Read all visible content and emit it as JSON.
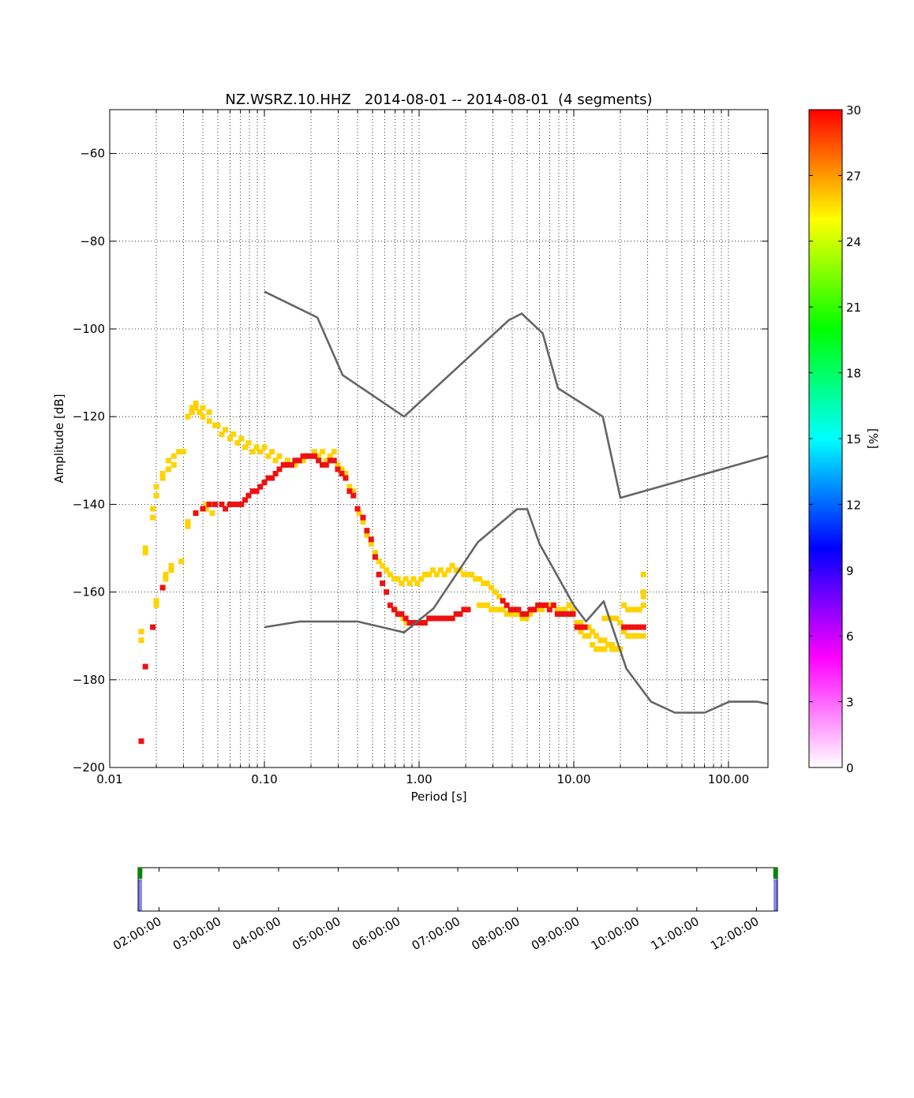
{
  "chart_data": {
    "type": "heatmap",
    "title": "NZ.WSRZ.10.HHZ   2014-08-01 -- 2014-08-01  (4 segments)",
    "xlabel": "Period [s]",
    "ylabel": "Amplitude [dB]",
    "xscale": "log",
    "xlim": [
      0.01,
      180
    ],
    "ylim": [
      -200,
      -50
    ],
    "x_ticks": [
      0.01,
      0.1,
      1,
      10,
      100
    ],
    "x_tick_labels": [
      "0.01",
      "0.10",
      "1.00",
      "10.00",
      "100.00"
    ],
    "y_ticks": [
      -60,
      -80,
      -100,
      -120,
      -140,
      -160,
      -180,
      -200
    ],
    "y_tick_labels": [
      "−60",
      "−80",
      "−100",
      "−120",
      "−140",
      "−160",
      "−180",
      "−200"
    ],
    "grid": true,
    "colorbar": {
      "label": "[%]",
      "range": [
        0,
        30
      ],
      "ticks": [
        0,
        3,
        6,
        9,
        12,
        15,
        18,
        21,
        24,
        27,
        30
      ],
      "tick_labels": [
        "0",
        "3",
        "6",
        "9",
        "12",
        "15",
        "18",
        "21",
        "24",
        "27",
        "30"
      ],
      "colors": [
        "#ffffff",
        "#ff00ff",
        "#0000ff",
        "#00ffff",
        "#00ff00",
        "#ffff00",
        "#ff0000"
      ]
    },
    "noise_models": [
      {
        "label": "NHNM",
        "color": "#646464",
        "points": [
          [
            0.1,
            -91.5
          ],
          [
            0.22,
            -97.4
          ],
          [
            0.32,
            -110.5
          ],
          [
            0.8,
            -120
          ],
          [
            3.8,
            -98
          ],
          [
            4.6,
            -96.5
          ],
          [
            6.3,
            -101
          ],
          [
            7.9,
            -113.5
          ],
          [
            15.4,
            -120
          ],
          [
            20,
            -138.5
          ],
          [
            180,
            -129
          ]
        ]
      },
      {
        "label": "NLNM",
        "color": "#646464",
        "points": [
          [
            0.1,
            -168
          ],
          [
            0.17,
            -166.7
          ],
          [
            0.4,
            -166.7
          ],
          [
            0.8,
            -169.2
          ],
          [
            1.24,
            -163.7
          ],
          [
            2.4,
            -148.6
          ],
          [
            4.3,
            -141.1
          ],
          [
            5.0,
            -141.1
          ],
          [
            6.0,
            -149
          ],
          [
            10,
            -163
          ],
          [
            12,
            -166.7
          ],
          [
            15.6,
            -162.1
          ],
          [
            21.9,
            -177.5
          ],
          [
            31.6,
            -185
          ],
          [
            45,
            -187.5
          ],
          [
            70,
            -187.5
          ],
          [
            101,
            -185
          ],
          [
            154,
            -185
          ],
          [
            180,
            -185.5
          ]
        ]
      }
    ],
    "density_cells": {
      "yellow": [
        [
          0.016,
          -169
        ],
        [
          0.016,
          -171
        ],
        [
          0.017,
          -150
        ],
        [
          0.017,
          -151
        ],
        [
          0.019,
          -141
        ],
        [
          0.019,
          -143
        ],
        [
          0.02,
          -136
        ],
        [
          0.02,
          -138
        ],
        [
          0.02,
          -162
        ],
        [
          0.02,
          -163
        ],
        [
          0.022,
          -133
        ],
        [
          0.022,
          -134
        ],
        [
          0.023,
          -156
        ],
        [
          0.023,
          -157
        ],
        [
          0.024,
          -130
        ],
        [
          0.024,
          -132
        ],
        [
          0.025,
          -154
        ],
        [
          0.025,
          -155
        ],
        [
          0.026,
          -129
        ],
        [
          0.026,
          -131
        ],
        [
          0.028,
          -128
        ],
        [
          0.029,
          -153
        ],
        [
          0.03,
          -128
        ],
        [
          0.032,
          -120
        ],
        [
          0.032,
          -144
        ],
        [
          0.032,
          -145
        ],
        [
          0.034,
          -118
        ],
        [
          0.034,
          -119
        ],
        [
          0.036,
          -117
        ],
        [
          0.036,
          -118
        ],
        [
          0.038,
          -119
        ],
        [
          0.04,
          -118
        ],
        [
          0.04,
          -120
        ],
        [
          0.042,
          -140
        ],
        [
          0.042,
          -141
        ],
        [
          0.044,
          -119
        ],
        [
          0.044,
          -121
        ],
        [
          0.046,
          -140
        ],
        [
          0.046,
          -142
        ],
        [
          0.048,
          -122
        ],
        [
          0.05,
          -122
        ],
        [
          0.053,
          -124
        ],
        [
          0.056,
          -123
        ],
        [
          0.06,
          -125
        ],
        [
          0.063,
          -124
        ],
        [
          0.067,
          -126
        ],
        [
          0.071,
          -125
        ],
        [
          0.075,
          -127
        ],
        [
          0.079,
          -126
        ],
        [
          0.084,
          -128
        ],
        [
          0.089,
          -127
        ],
        [
          0.094,
          -128
        ],
        [
          0.1,
          -127
        ],
        [
          0.106,
          -129
        ],
        [
          0.112,
          -128
        ],
        [
          0.118,
          -130
        ],
        [
          0.125,
          -129
        ],
        [
          0.133,
          -131
        ],
        [
          0.141,
          -130
        ],
        [
          0.15,
          -131
        ],
        [
          0.158,
          -131
        ],
        [
          0.168,
          -130
        ],
        [
          0.178,
          -130
        ],
        [
          0.188,
          -129
        ],
        [
          0.2,
          -129
        ],
        [
          0.211,
          -128
        ],
        [
          0.224,
          -129
        ],
        [
          0.237,
          -128
        ],
        [
          0.251,
          -130
        ],
        [
          0.266,
          -129
        ],
        [
          0.282,
          -128
        ],
        [
          0.298,
          -131
        ],
        [
          0.316,
          -132
        ],
        [
          0.335,
          -133
        ],
        [
          0.355,
          -136
        ],
        [
          0.376,
          -137
        ],
        [
          0.41,
          -142
        ],
        [
          0.434,
          -144
        ],
        [
          0.46,
          -147
        ],
        [
          0.49,
          -149
        ],
        [
          0.52,
          -151
        ],
        [
          0.55,
          -153
        ],
        [
          0.58,
          -154
        ],
        [
          0.615,
          -155
        ],
        [
          0.65,
          -156
        ],
        [
          0.69,
          -157
        ],
        [
          0.73,
          -157
        ],
        [
          0.77,
          -158
        ],
        [
          0.82,
          -157
        ],
        [
          0.87,
          -158
        ],
        [
          0.92,
          -157
        ],
        [
          0.975,
          -158
        ],
        [
          1.03,
          -157
        ],
        [
          1.09,
          -156
        ],
        [
          1.16,
          -156
        ],
        [
          1.23,
          -155
        ],
        [
          1.3,
          -156
        ],
        [
          1.38,
          -155
        ],
        [
          1.46,
          -156
        ],
        [
          1.55,
          -155
        ],
        [
          1.64,
          -154
        ],
        [
          1.74,
          -155
        ],
        [
          1.84,
          -155
        ],
        [
          1.95,
          -156
        ],
        [
          2.07,
          -156
        ],
        [
          2.19,
          -156
        ],
        [
          2.32,
          -157
        ],
        [
          2.46,
          -157
        ],
        [
          2.61,
          -158
        ],
        [
          2.76,
          -158
        ],
        [
          2.93,
          -159
        ],
        [
          3.1,
          -160
        ],
        [
          3.29,
          -161
        ],
        [
          0.7,
          -164
        ],
        [
          0.74,
          -165
        ],
        [
          0.79,
          -166
        ],
        [
          0.83,
          -167
        ],
        [
          2.46,
          -163
        ],
        [
          2.61,
          -163
        ],
        [
          2.76,
          -163
        ],
        [
          2.93,
          -164
        ],
        [
          3.1,
          -164
        ],
        [
          3.29,
          -164
        ],
        [
          3.48,
          -164
        ],
        [
          3.69,
          -165
        ],
        [
          3.91,
          -165
        ],
        [
          4.15,
          -165
        ],
        [
          4.39,
          -165
        ],
        [
          4.66,
          -166
        ],
        [
          4.93,
          -166
        ],
        [
          5.23,
          -165
        ],
        [
          5.54,
          -164
        ],
        [
          5.87,
          -164
        ],
        [
          6.22,
          -164
        ],
        [
          6.59,
          -163
        ],
        [
          6.98,
          -163
        ],
        [
          7.4,
          -163
        ],
        [
          7.84,
          -164
        ],
        [
          8.31,
          -164
        ],
        [
          8.8,
          -164
        ],
        [
          9.33,
          -163
        ],
        [
          9.88,
          -164
        ],
        [
          10.5,
          -167
        ],
        [
          11.1,
          -167
        ],
        [
          11.8,
          -168
        ],
        [
          12.5,
          -168
        ],
        [
          13.2,
          -169
        ],
        [
          14.0,
          -170
        ],
        [
          14.9,
          -171
        ],
        [
          15.8,
          -171
        ],
        [
          16.7,
          -172
        ],
        [
          17.7,
          -172
        ],
        [
          18.8,
          -173
        ],
        [
          19.9,
          -173
        ],
        [
          10.5,
          -168
        ],
        [
          11.1,
          -169
        ],
        [
          11.8,
          -170
        ],
        [
          12.5,
          -170
        ],
        [
          13.2,
          -172
        ],
        [
          14.0,
          -173
        ],
        [
          14.9,
          -173
        ],
        [
          15.8,
          -173
        ],
        [
          16.7,
          -172
        ],
        [
          17.7,
          -173
        ],
        [
          18.8,
          -173
        ],
        [
          15.8,
          -166
        ],
        [
          16.7,
          -166
        ],
        [
          17.7,
          -166
        ],
        [
          18.8,
          -166
        ],
        [
          19.9,
          -167
        ],
        [
          21.1,
          -169
        ],
        [
          22.4,
          -170
        ],
        [
          23.7,
          -170
        ],
        [
          25.1,
          -170
        ],
        [
          26.6,
          -170
        ],
        [
          28.2,
          -170
        ],
        [
          21.1,
          -163
        ],
        [
          22.4,
          -164
        ],
        [
          23.7,
          -164
        ],
        [
          25.1,
          -164
        ],
        [
          26.6,
          -164
        ],
        [
          28.2,
          -163
        ],
        [
          28.2,
          -161
        ],
        [
          28.2,
          -160
        ],
        [
          28.2,
          -156
        ]
      ],
      "red": [
        [
          0.016,
          -194
        ],
        [
          0.017,
          -177
        ],
        [
          0.019,
          -168
        ],
        [
          0.022,
          -159
        ],
        [
          0.036,
          -142
        ],
        [
          0.04,
          -141
        ],
        [
          0.044,
          -140
        ],
        [
          0.048,
          -140
        ],
        [
          0.053,
          -140
        ],
        [
          0.056,
          -141
        ],
        [
          0.06,
          -140
        ],
        [
          0.063,
          -140
        ],
        [
          0.067,
          -140
        ],
        [
          0.071,
          -140
        ],
        [
          0.075,
          -139
        ],
        [
          0.079,
          -138
        ],
        [
          0.084,
          -137
        ],
        [
          0.089,
          -137
        ],
        [
          0.094,
          -136
        ],
        [
          0.1,
          -135
        ],
        [
          0.106,
          -134
        ],
        [
          0.112,
          -134
        ],
        [
          0.118,
          -133
        ],
        [
          0.125,
          -132
        ],
        [
          0.133,
          -131
        ],
        [
          0.141,
          -131
        ],
        [
          0.15,
          -131
        ],
        [
          0.158,
          -130
        ],
        [
          0.168,
          -130
        ],
        [
          0.178,
          -129
        ],
        [
          0.188,
          -129
        ],
        [
          0.2,
          -129
        ],
        [
          0.211,
          -129
        ],
        [
          0.224,
          -130
        ],
        [
          0.237,
          -131
        ],
        [
          0.251,
          -131
        ],
        [
          0.266,
          -130
        ],
        [
          0.282,
          -130
        ],
        [
          0.298,
          -132
        ],
        [
          0.316,
          -133
        ],
        [
          0.335,
          -134
        ],
        [
          0.355,
          -137
        ],
        [
          0.376,
          -138
        ],
        [
          0.4,
          -141
        ],
        [
          0.434,
          -143
        ],
        [
          0.46,
          -146
        ],
        [
          0.49,
          -148
        ],
        [
          0.52,
          -152
        ],
        [
          0.55,
          -156
        ],
        [
          0.58,
          -158
        ],
        [
          0.615,
          -160
        ],
        [
          0.65,
          -163
        ],
        [
          0.69,
          -164
        ],
        [
          0.73,
          -165
        ],
        [
          0.77,
          -165
        ],
        [
          0.82,
          -166
        ],
        [
          0.87,
          -167
        ],
        [
          0.92,
          -167
        ],
        [
          0.975,
          -167
        ],
        [
          1.03,
          -167
        ],
        [
          1.09,
          -167
        ],
        [
          1.16,
          -166
        ],
        [
          1.23,
          -166
        ],
        [
          1.3,
          -166
        ],
        [
          1.38,
          -166
        ],
        [
          1.46,
          -166
        ],
        [
          1.55,
          -166
        ],
        [
          1.64,
          -166
        ],
        [
          1.74,
          -165
        ],
        [
          1.84,
          -165
        ],
        [
          1.95,
          -164
        ],
        [
          2.07,
          -164
        ],
        [
          3.48,
          -162
        ],
        [
          3.69,
          -163
        ],
        [
          3.91,
          -164
        ],
        [
          4.15,
          -164
        ],
        [
          4.39,
          -164
        ],
        [
          4.66,
          -165
        ],
        [
          4.93,
          -165
        ],
        [
          5.23,
          -164
        ],
        [
          5.54,
          -164
        ],
        [
          5.87,
          -163
        ],
        [
          6.22,
          -163
        ],
        [
          6.59,
          -163
        ],
        [
          6.98,
          -164
        ],
        [
          7.4,
          -163
        ],
        [
          7.84,
          -165
        ],
        [
          8.31,
          -165
        ],
        [
          8.8,
          -165
        ],
        [
          9.33,
          -165
        ],
        [
          9.88,
          -165
        ],
        [
          10.5,
          -168
        ],
        [
          11.1,
          -168
        ],
        [
          11.8,
          -168
        ],
        [
          21.1,
          -168
        ],
        [
          22.4,
          -168
        ],
        [
          23.7,
          -168
        ],
        [
          25.1,
          -168
        ],
        [
          26.6,
          -168
        ],
        [
          28.2,
          -168
        ]
      ]
    },
    "segment_timeline": {
      "x_tick_labels": [
        "02:00:00",
        "03:00:00",
        "04:00:00",
        "05:00:00",
        "06:00:00",
        "07:00:00",
        "08:00:00",
        "09:00:00",
        "10:00:00",
        "11:00:00",
        "12:00:00"
      ],
      "x_ticks_hours": [
        2,
        3,
        4,
        5,
        6,
        7,
        8,
        9,
        10,
        11,
        12
      ],
      "range_hours": [
        1.65,
        12.35
      ],
      "segments_hours": [
        [
          1.65,
          1.72
        ],
        [
          12.28,
          12.35
        ]
      ]
    }
  }
}
